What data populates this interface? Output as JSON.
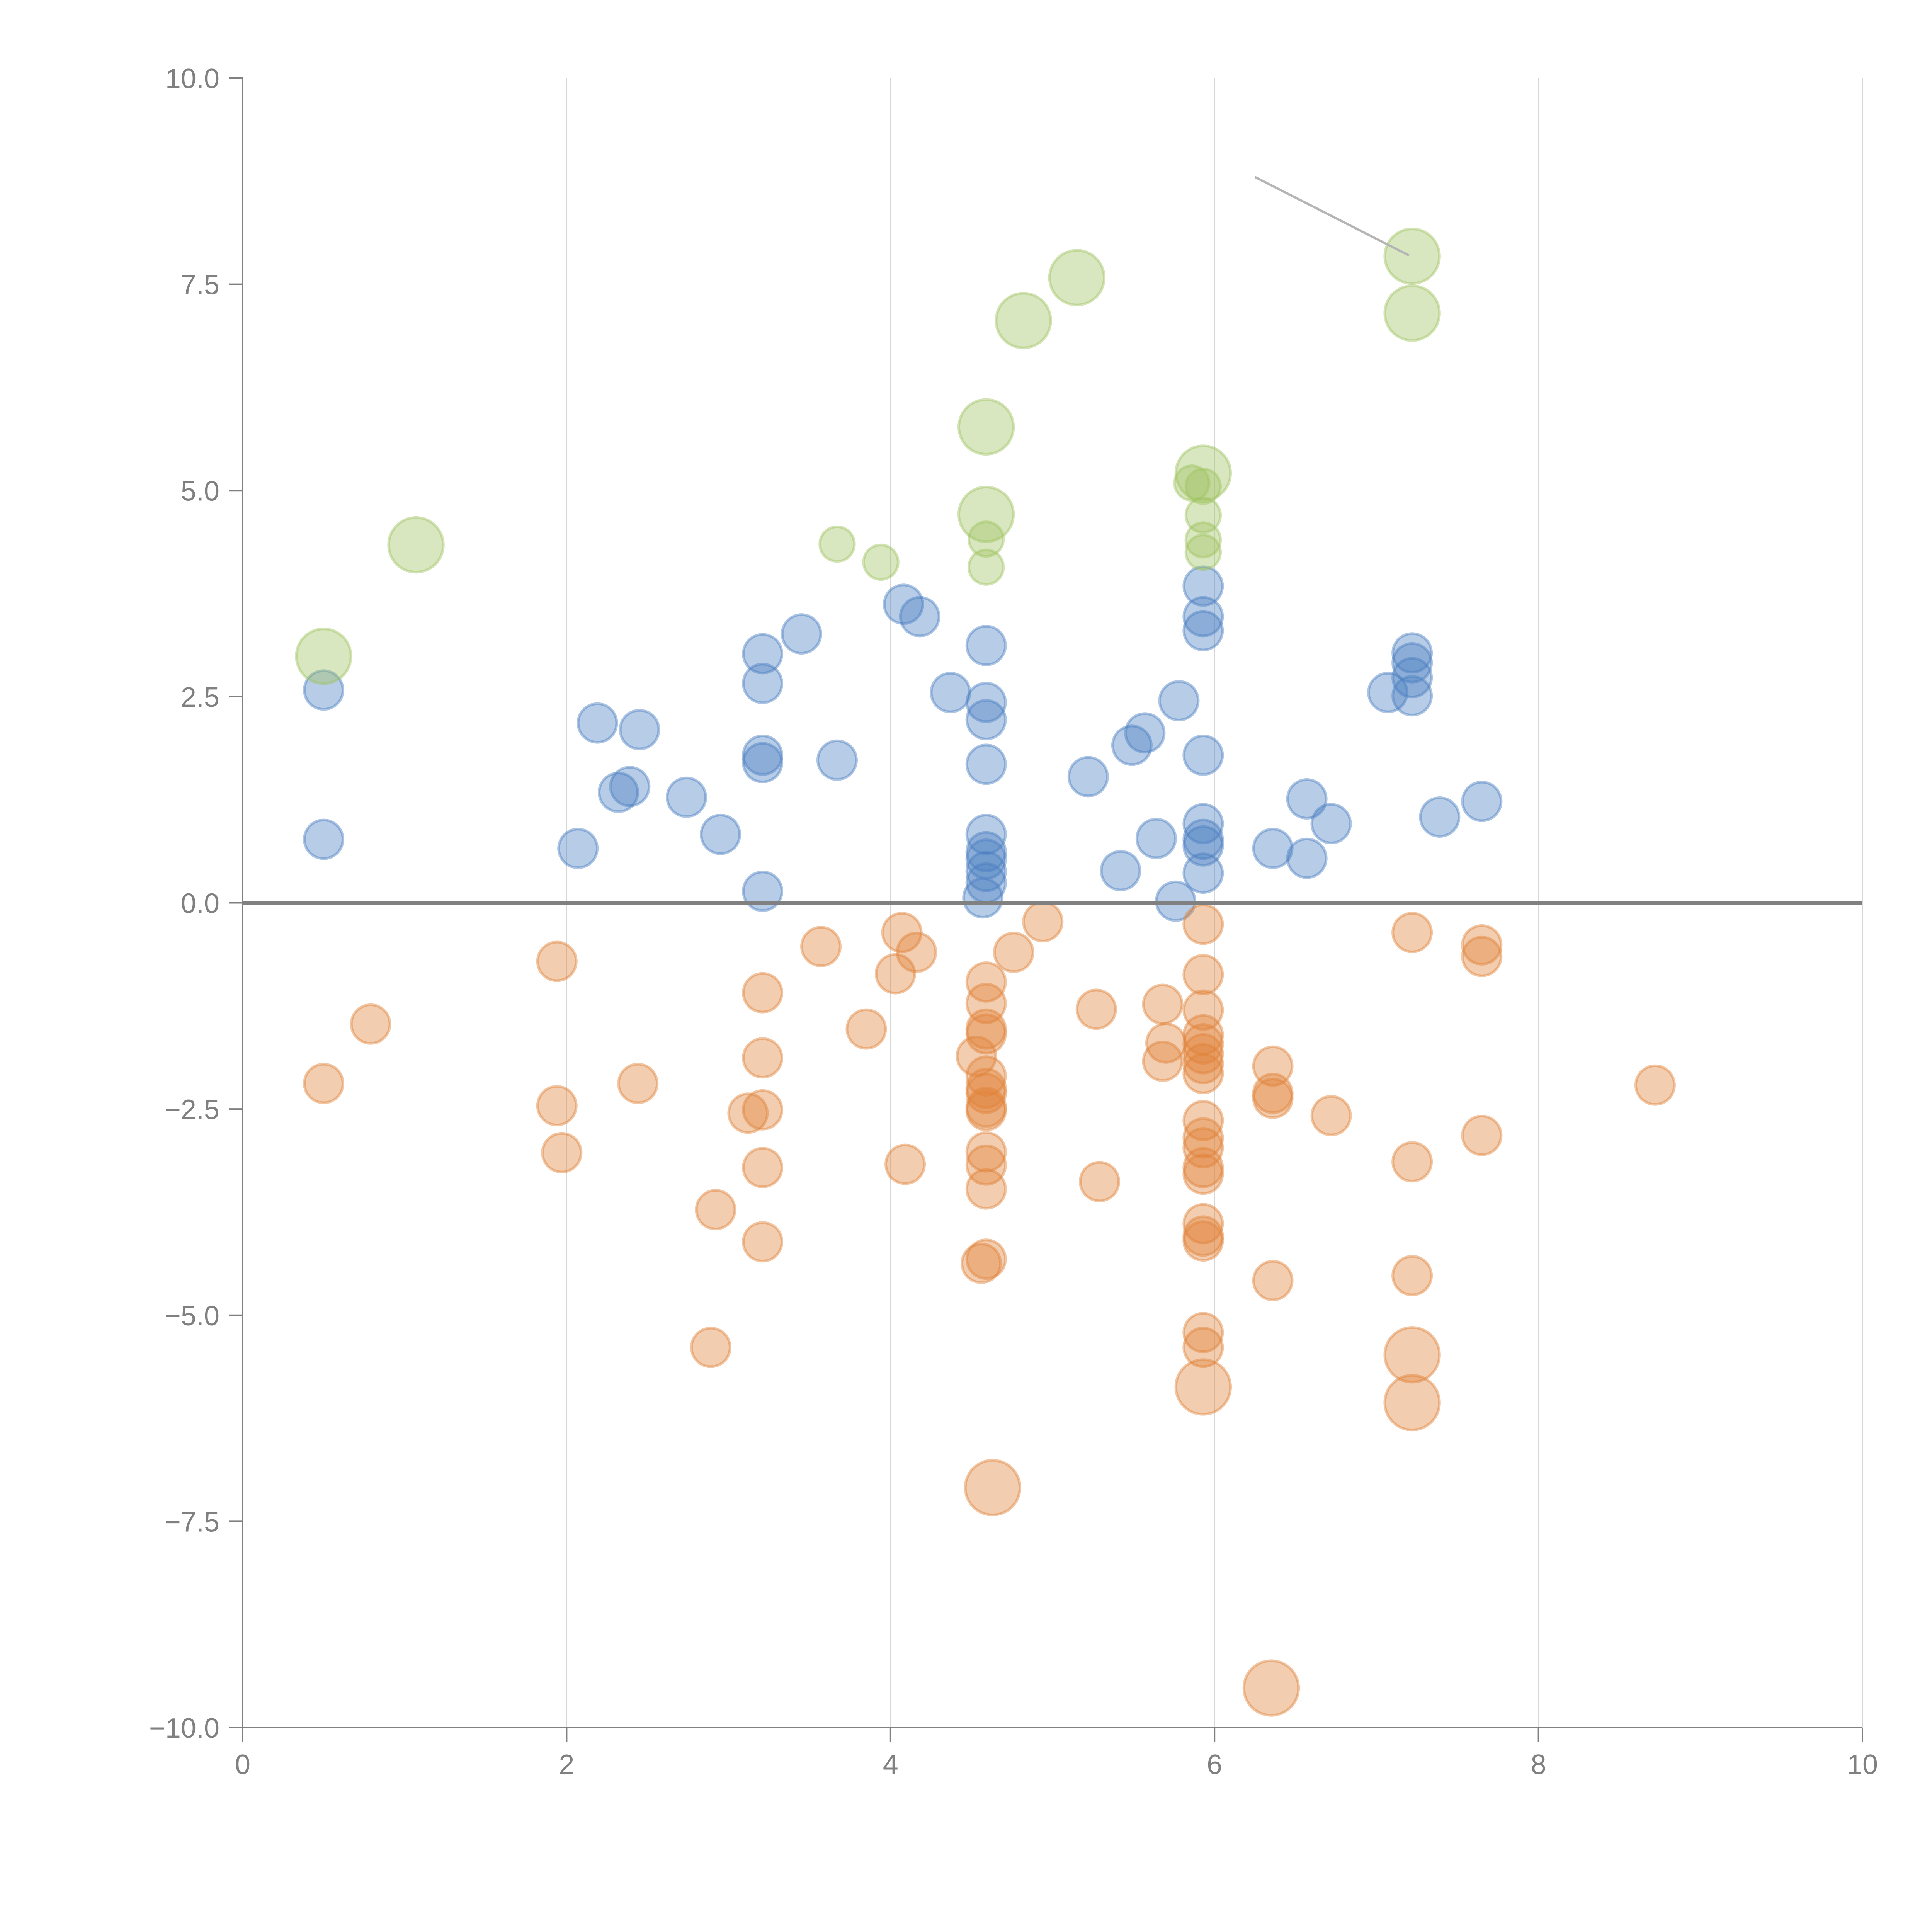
{
  "chart_data": {
    "type": "scatter",
    "title": "",
    "xlabel": "",
    "ylabel": "",
    "xlim": [
      0,
      10
    ],
    "ylim": [
      -10,
      10
    ],
    "x_ticks": [
      "0",
      "2",
      "4",
      "6",
      "8",
      "10"
    ],
    "x_tick_values": [
      0,
      2,
      4,
      6,
      8,
      10
    ],
    "y_ticks": [
      "10.0",
      "7.5",
      "5.0",
      "2.5",
      "0.0",
      "−2.5",
      "−5.0",
      "−7.5",
      "−10.0"
    ],
    "y_tick_values": [
      10,
      7.5,
      5,
      2.5,
      0,
      -2.5,
      -5,
      -7.5,
      -10
    ],
    "grid": "vertical",
    "legend": "none",
    "reference_line": {
      "axis": "y",
      "value": 0
    },
    "annotation_line": {
      "from": [
        6.25,
        8.8
      ],
      "to": [
        7.2,
        7.85
      ]
    },
    "series": [
      {
        "name": "blue",
        "color": "#4c7fc0",
        "points": [
          {
            "x": 0.5,
            "y": 2.58,
            "s": 1
          },
          {
            "x": 0.5,
            "y": 0.77,
            "s": 1
          },
          {
            "x": 2.07,
            "y": 0.66,
            "s": 1
          },
          {
            "x": 2.19,
            "y": 2.18,
            "s": 1
          },
          {
            "x": 2.45,
            "y": 2.1,
            "s": 1
          },
          {
            "x": 2.32,
            "y": 1.34,
            "s": 1
          },
          {
            "x": 2.39,
            "y": 1.41,
            "s": 1
          },
          {
            "x": 2.74,
            "y": 1.28,
            "s": 1
          },
          {
            "x": 2.95,
            "y": 0.83,
            "s": 1
          },
          {
            "x": 3.21,
            "y": 3.02,
            "s": 1
          },
          {
            "x": 3.21,
            "y": 2.66,
            "s": 1
          },
          {
            "x": 3.21,
            "y": 1.79,
            "s": 1
          },
          {
            "x": 3.21,
            "y": 1.7,
            "s": 1
          },
          {
            "x": 3.21,
            "y": 0.14,
            "s": 1
          },
          {
            "x": 3.45,
            "y": 3.26,
            "s": 1
          },
          {
            "x": 3.67,
            "y": 1.73,
            "s": 1
          },
          {
            "x": 4.08,
            "y": 3.62,
            "s": 1
          },
          {
            "x": 4.18,
            "y": 3.47,
            "s": 1
          },
          {
            "x": 4.37,
            "y": 2.55,
            "s": 1
          },
          {
            "x": 4.59,
            "y": 3.12,
            "s": 1
          },
          {
            "x": 4.59,
            "y": 2.43,
            "s": 1
          },
          {
            "x": 4.59,
            "y": 2.22,
            "s": 1
          },
          {
            "x": 4.59,
            "y": 1.68,
            "s": 1
          },
          {
            "x": 4.59,
            "y": 0.83,
            "s": 1
          },
          {
            "x": 4.59,
            "y": 0.62,
            "s": 1
          },
          {
            "x": 4.59,
            "y": 0.53,
            "s": 1
          },
          {
            "x": 4.59,
            "y": 0.38,
            "s": 1
          },
          {
            "x": 4.59,
            "y": 0.24,
            "s": 1
          },
          {
            "x": 4.57,
            "y": 0.06,
            "s": 1
          },
          {
            "x": 5.22,
            "y": 1.53,
            "s": 1
          },
          {
            "x": 5.42,
            "y": 0.39,
            "s": 1
          },
          {
            "x": 5.49,
            "y": 1.91,
            "s": 1
          },
          {
            "x": 5.57,
            "y": 2.06,
            "s": 1
          },
          {
            "x": 5.64,
            "y": 0.78,
            "s": 1
          },
          {
            "x": 5.76,
            "y": 0.02,
            "s": 1
          },
          {
            "x": 5.78,
            "y": 2.45,
            "s": 1
          },
          {
            "x": 5.93,
            "y": 3.84,
            "s": 1
          },
          {
            "x": 5.93,
            "y": 3.47,
            "s": 1
          },
          {
            "x": 5.93,
            "y": 3.3,
            "s": 1
          },
          {
            "x": 5.93,
            "y": 1.79,
            "s": 1
          },
          {
            "x": 5.93,
            "y": 0.96,
            "s": 1
          },
          {
            "x": 5.93,
            "y": 0.77,
            "s": 1
          },
          {
            "x": 5.93,
            "y": 0.69,
            "s": 1
          },
          {
            "x": 5.93,
            "y": 0.36,
            "s": 1
          },
          {
            "x": 6.36,
            "y": 0.66,
            "s": 1
          },
          {
            "x": 6.57,
            "y": 1.26,
            "s": 1
          },
          {
            "x": 6.57,
            "y": 0.54,
            "s": 1
          },
          {
            "x": 6.72,
            "y": 0.96,
            "s": 1
          },
          {
            "x": 7.07,
            "y": 2.55,
            "s": 1
          },
          {
            "x": 7.22,
            "y": 3.03,
            "s": 1
          },
          {
            "x": 7.22,
            "y": 2.91,
            "s": 1
          },
          {
            "x": 7.22,
            "y": 2.73,
            "s": 1
          },
          {
            "x": 7.22,
            "y": 2.51,
            "s": 1
          },
          {
            "x": 7.39,
            "y": 1.04,
            "s": 1
          },
          {
            "x": 7.65,
            "y": 1.23,
            "s": 1
          }
        ]
      },
      {
        "name": "green",
        "color": "#a0c462",
        "points": [
          {
            "x": 0.5,
            "y": 2.99,
            "s": 2
          },
          {
            "x": 1.07,
            "y": 4.34,
            "s": 2
          },
          {
            "x": 3.67,
            "y": 4.35,
            "s": 0.8
          },
          {
            "x": 3.94,
            "y": 4.13,
            "s": 0.8
          },
          {
            "x": 4.59,
            "y": 5.77,
            "s": 2
          },
          {
            "x": 4.59,
            "y": 4.71,
            "s": 2
          },
          {
            "x": 4.59,
            "y": 4.41,
            "s": 0.8
          },
          {
            "x": 4.59,
            "y": 4.07,
            "s": 0.8
          },
          {
            "x": 4.82,
            "y": 7.06,
            "s": 2
          },
          {
            "x": 5.15,
            "y": 7.58,
            "s": 2
          },
          {
            "x": 5.93,
            "y": 5.21,
            "s": 2
          },
          {
            "x": 5.86,
            "y": 5.09,
            "s": 0.8
          },
          {
            "x": 5.93,
            "y": 5.05,
            "s": 0.8
          },
          {
            "x": 5.93,
            "y": 4.7,
            "s": 0.8
          },
          {
            "x": 5.93,
            "y": 4.4,
            "s": 0.8
          },
          {
            "x": 5.93,
            "y": 4.25,
            "s": 0.8
          },
          {
            "x": 7.22,
            "y": 7.84,
            "s": 2
          },
          {
            "x": 7.22,
            "y": 7.15,
            "s": 2
          }
        ]
      },
      {
        "name": "orange",
        "color": "#e1823a",
        "points": [
          {
            "x": 0.5,
            "y": -2.19,
            "s": 1
          },
          {
            "x": 0.79,
            "y": -1.47,
            "s": 1
          },
          {
            "x": 1.94,
            "y": -0.71,
            "s": 1
          },
          {
            "x": 1.94,
            "y": -2.46,
            "s": 1
          },
          {
            "x": 1.97,
            "y": -3.03,
            "s": 1
          },
          {
            "x": 2.44,
            "y": -2.19,
            "s": 1
          },
          {
            "x": 2.92,
            "y": -3.72,
            "s": 1
          },
          {
            "x": 2.89,
            "y": -5.39,
            "s": 1
          },
          {
            "x": 3.12,
            "y": -2.55,
            "s": 1
          },
          {
            "x": 3.21,
            "y": -1.09,
            "s": 1
          },
          {
            "x": 3.21,
            "y": -1.88,
            "s": 1
          },
          {
            "x": 3.21,
            "y": -2.51,
            "s": 1
          },
          {
            "x": 3.21,
            "y": -3.21,
            "s": 1
          },
          {
            "x": 3.21,
            "y": -4.11,
            "s": 1
          },
          {
            "x": 3.57,
            "y": -0.53,
            "s": 1
          },
          {
            "x": 3.85,
            "y": -1.53,
            "s": 1
          },
          {
            "x": 4.03,
            "y": -0.86,
            "s": 1
          },
          {
            "x": 4.07,
            "y": -0.36,
            "s": 1
          },
          {
            "x": 4.16,
            "y": -0.6,
            "s": 1
          },
          {
            "x": 4.09,
            "y": -3.17,
            "s": 1
          },
          {
            "x": 4.59,
            "y": -0.96,
            "s": 1
          },
          {
            "x": 4.59,
            "y": -1.22,
            "s": 1
          },
          {
            "x": 4.59,
            "y": -1.53,
            "s": 1
          },
          {
            "x": 4.59,
            "y": -1.59,
            "s": 1
          },
          {
            "x": 4.53,
            "y": -1.86,
            "s": 1
          },
          {
            "x": 4.59,
            "y": -2.1,
            "s": 1
          },
          {
            "x": 4.59,
            "y": -2.25,
            "s": 1
          },
          {
            "x": 4.59,
            "y": -2.31,
            "s": 1
          },
          {
            "x": 4.59,
            "y": -2.48,
            "s": 1
          },
          {
            "x": 4.59,
            "y": -2.52,
            "s": 1
          },
          {
            "x": 4.59,
            "y": -3.02,
            "s": 1
          },
          {
            "x": 4.59,
            "y": -3.18,
            "s": 1
          },
          {
            "x": 4.59,
            "y": -3.47,
            "s": 1
          },
          {
            "x": 4.56,
            "y": -4.37,
            "s": 1
          },
          {
            "x": 4.59,
            "y": -4.32,
            "s": 1
          },
          {
            "x": 4.63,
            "y": -7.09,
            "s": 2
          },
          {
            "x": 4.76,
            "y": -0.6,
            "s": 1
          },
          {
            "x": 4.94,
            "y": -0.23,
            "s": 1
          },
          {
            "x": 5.27,
            "y": -1.29,
            "s": 1
          },
          {
            "x": 5.29,
            "y": -3.38,
            "s": 1
          },
          {
            "x": 5.68,
            "y": -1.23,
            "s": 1
          },
          {
            "x": 5.7,
            "y": -1.7,
            "s": 1
          },
          {
            "x": 5.68,
            "y": -1.92,
            "s": 1
          },
          {
            "x": 5.93,
            "y": -0.26,
            "s": 1
          },
          {
            "x": 5.93,
            "y": -0.87,
            "s": 1
          },
          {
            "x": 5.93,
            "y": -1.3,
            "s": 1
          },
          {
            "x": 5.93,
            "y": -1.6,
            "s": 1
          },
          {
            "x": 5.93,
            "y": -1.71,
            "s": 1
          },
          {
            "x": 5.93,
            "y": -1.83,
            "s": 1
          },
          {
            "x": 5.93,
            "y": -1.95,
            "s": 1
          },
          {
            "x": 5.93,
            "y": -2.07,
            "s": 1
          },
          {
            "x": 5.93,
            "y": -2.64,
            "s": 1
          },
          {
            "x": 5.93,
            "y": -2.85,
            "s": 1
          },
          {
            "x": 5.93,
            "y": -2.97,
            "s": 1
          },
          {
            "x": 5.93,
            "y": -3.21,
            "s": 1
          },
          {
            "x": 5.93,
            "y": -3.29,
            "s": 1
          },
          {
            "x": 5.93,
            "y": -3.89,
            "s": 1
          },
          {
            "x": 5.93,
            "y": -4.04,
            "s": 1
          },
          {
            "x": 5.93,
            "y": -4.1,
            "s": 1
          },
          {
            "x": 5.93,
            "y": -5.21,
            "s": 1
          },
          {
            "x": 5.93,
            "y": -5.39,
            "s": 1
          },
          {
            "x": 5.93,
            "y": -5.87,
            "s": 2
          },
          {
            "x": 6.36,
            "y": -1.98,
            "s": 1
          },
          {
            "x": 6.36,
            "y": -2.31,
            "s": 1
          },
          {
            "x": 6.36,
            "y": -2.37,
            "s": 1
          },
          {
            "x": 6.36,
            "y": -4.58,
            "s": 1
          },
          {
            "x": 6.35,
            "y": -9.52,
            "s": 2
          },
          {
            "x": 6.72,
            "y": -2.58,
            "s": 1
          },
          {
            "x": 7.22,
            "y": -0.36,
            "s": 1
          },
          {
            "x": 7.22,
            "y": -3.14,
            "s": 1
          },
          {
            "x": 7.22,
            "y": -4.52,
            "s": 1
          },
          {
            "x": 7.22,
            "y": -5.48,
            "s": 2
          },
          {
            "x": 7.22,
            "y": -6.06,
            "s": 2
          },
          {
            "x": 7.65,
            "y": -0.51,
            "s": 1
          },
          {
            "x": 7.65,
            "y": -0.65,
            "s": 1
          },
          {
            "x": 7.65,
            "y": -2.82,
            "s": 1
          },
          {
            "x": 8.72,
            "y": -2.21,
            "s": 1
          }
        ]
      }
    ]
  }
}
